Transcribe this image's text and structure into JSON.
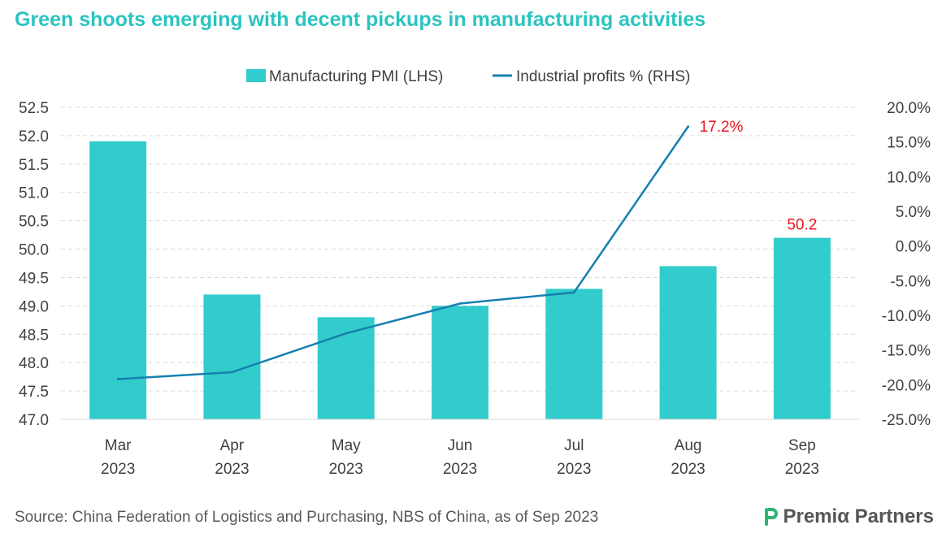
{
  "title": "Green shoots emerging with decent pickups in manufacturing activities",
  "source": "Source: China Federation of Logistics and Purchasing, NBS of China, as of Sep 2023",
  "brand": {
    "name": "PremiaPartners",
    "display": "Premiα Partners",
    "icon": "premia-logo-icon"
  },
  "colors": {
    "title": "#2bc4c0",
    "bar": "#33cccc",
    "line": "#1680b0",
    "annotation": "#e8141c",
    "grid": "#d9d9d9",
    "axis_text": "#404040",
    "brand_green": "#2bb673",
    "brand_text": "#555555"
  },
  "chart_data": {
    "type": "bar",
    "categories": [
      "Mar",
      "Apr",
      "May",
      "Jun",
      "Jul",
      "Aug",
      "Sep"
    ],
    "category_year": "2023",
    "series": [
      {
        "name": "Manufacturing PMI (LHS)",
        "type": "bar",
        "axis": "left",
        "values": [
          51.9,
          49.2,
          48.8,
          49.0,
          49.3,
          49.7,
          50.2
        ]
      },
      {
        "name": "Industrial profits % (RHS)",
        "type": "line",
        "axis": "right",
        "values": [
          -19.2,
          -18.2,
          -12.6,
          -8.3,
          -6.7,
          17.2,
          null
        ]
      }
    ],
    "annotations": [
      {
        "series": 0,
        "index": 6,
        "text": "50.2"
      },
      {
        "series": 1,
        "index": 5,
        "text": "17.2%"
      }
    ],
    "left_axis": {
      "ylim": [
        47.0,
        52.5
      ],
      "ticks": [
        "47.0",
        "47.5",
        "48.0",
        "48.5",
        "49.0",
        "49.5",
        "50.0",
        "50.5",
        "51.0",
        "51.5",
        "52.0",
        "52.5"
      ]
    },
    "right_axis": {
      "ylim": [
        -25,
        20
      ],
      "ticks": [
        "-25.0%",
        "-20.0%",
        "-15.0%",
        "-10.0%",
        "-5.0%",
        "0.0%",
        "5.0%",
        "10.0%",
        "15.0%",
        "20.0%"
      ]
    },
    "grid": true,
    "legend_position": "top-center"
  }
}
